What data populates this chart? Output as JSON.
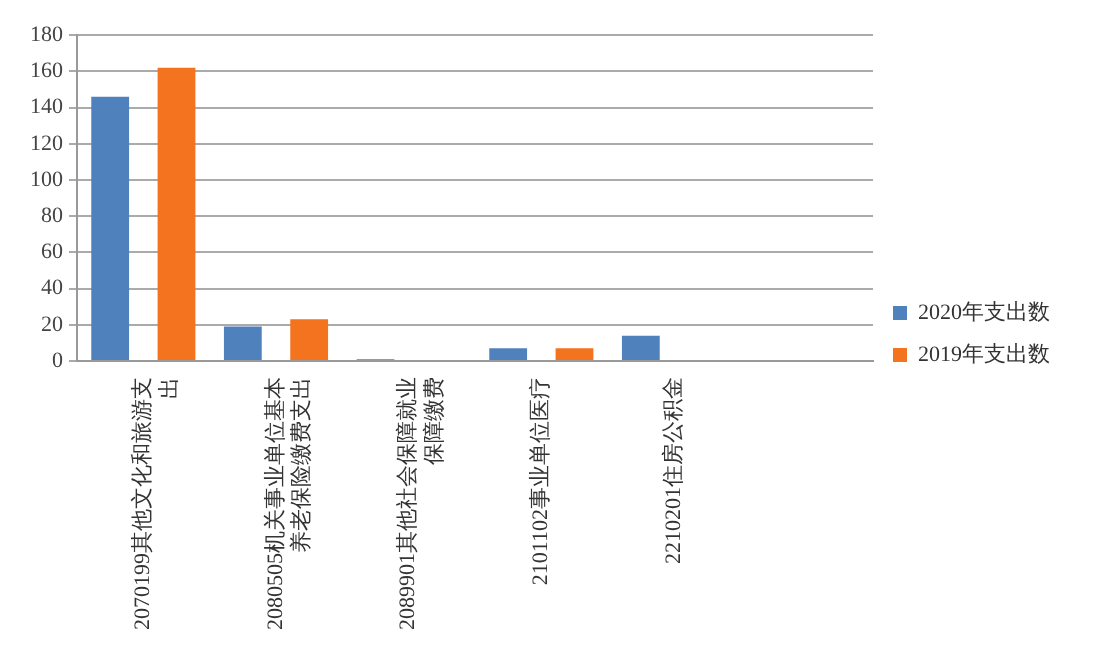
{
  "chart_data": {
    "type": "bar",
    "categories": [
      "2070199其他文化和旅游支出",
      "2080505机关事业单位基本养老保险缴费支出",
      "2089901其他社会保障就业保障缴费",
      "2101102事业单位医疗",
      "2210201住房公积金",
      null
    ],
    "series": [
      {
        "name": "2020年支出数",
        "color": "#4f81bd",
        "values": [
          146,
          19,
          1,
          7,
          14,
          null
        ]
      },
      {
        "name": "2019年支出数",
        "color": "#f4731f",
        "values": [
          162,
          23,
          null,
          7,
          null,
          null
        ]
      }
    ],
    "ylim": [
      0,
      180
    ],
    "yticks": [
      0,
      20,
      40,
      60,
      80,
      100,
      120,
      140,
      160,
      180
    ],
    "grid": "y",
    "legend": "right"
  }
}
